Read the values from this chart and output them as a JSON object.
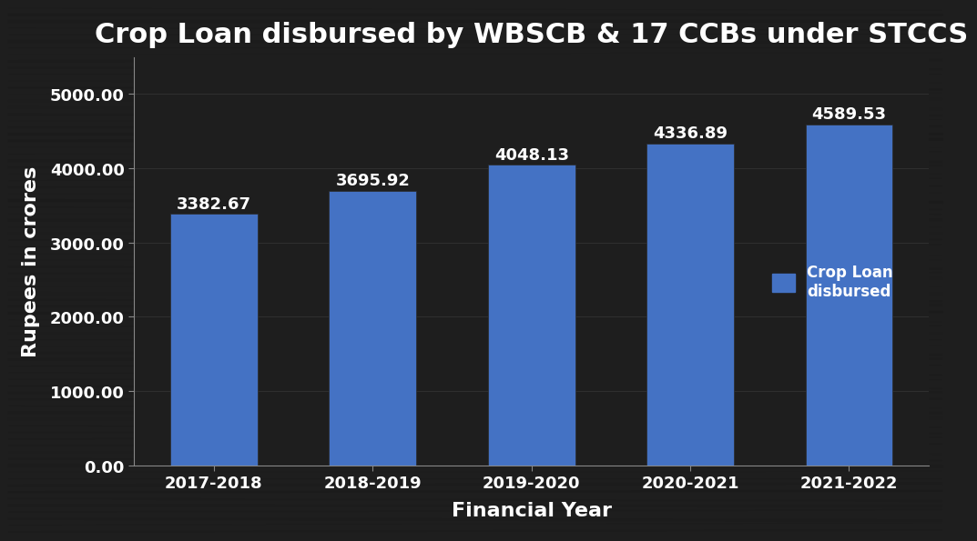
{
  "title": "Crop Loan disbursed by WBSCB & 17 CCBs under STCCS",
  "categories": [
    "2017-2018",
    "2018-2019",
    "2019-2020",
    "2020-2021",
    "2021-2022"
  ],
  "values": [
    3382.67,
    3695.92,
    4048.13,
    4336.89,
    4589.53
  ],
  "bar_color": "#4472C4",
  "xlabel": "Financial Year",
  "ylabel": "Rupees in crores",
  "ylim": [
    0,
    5500
  ],
  "yticks": [
    0,
    1000,
    2000,
    3000,
    4000,
    5000
  ],
  "ytick_labels": [
    "0.00",
    "1000.00",
    "2000.00",
    "3000.00",
    "4000.00",
    "5000.00"
  ],
  "background_color": "#1e1e1e",
  "plot_bg_color": "#1e1e1e",
  "title_fontsize": 22,
  "axis_label_fontsize": 16,
  "tick_fontsize": 13,
  "bar_label_fontsize": 13,
  "legend_label": "Crop Loan\ndisbursed",
  "title_color": "#ffffff",
  "axis_label_color": "#ffffff",
  "tick_color": "#ffffff",
  "bar_label_color": "#ffffff",
  "grid_color": "#888888",
  "spine_color": "#888888"
}
